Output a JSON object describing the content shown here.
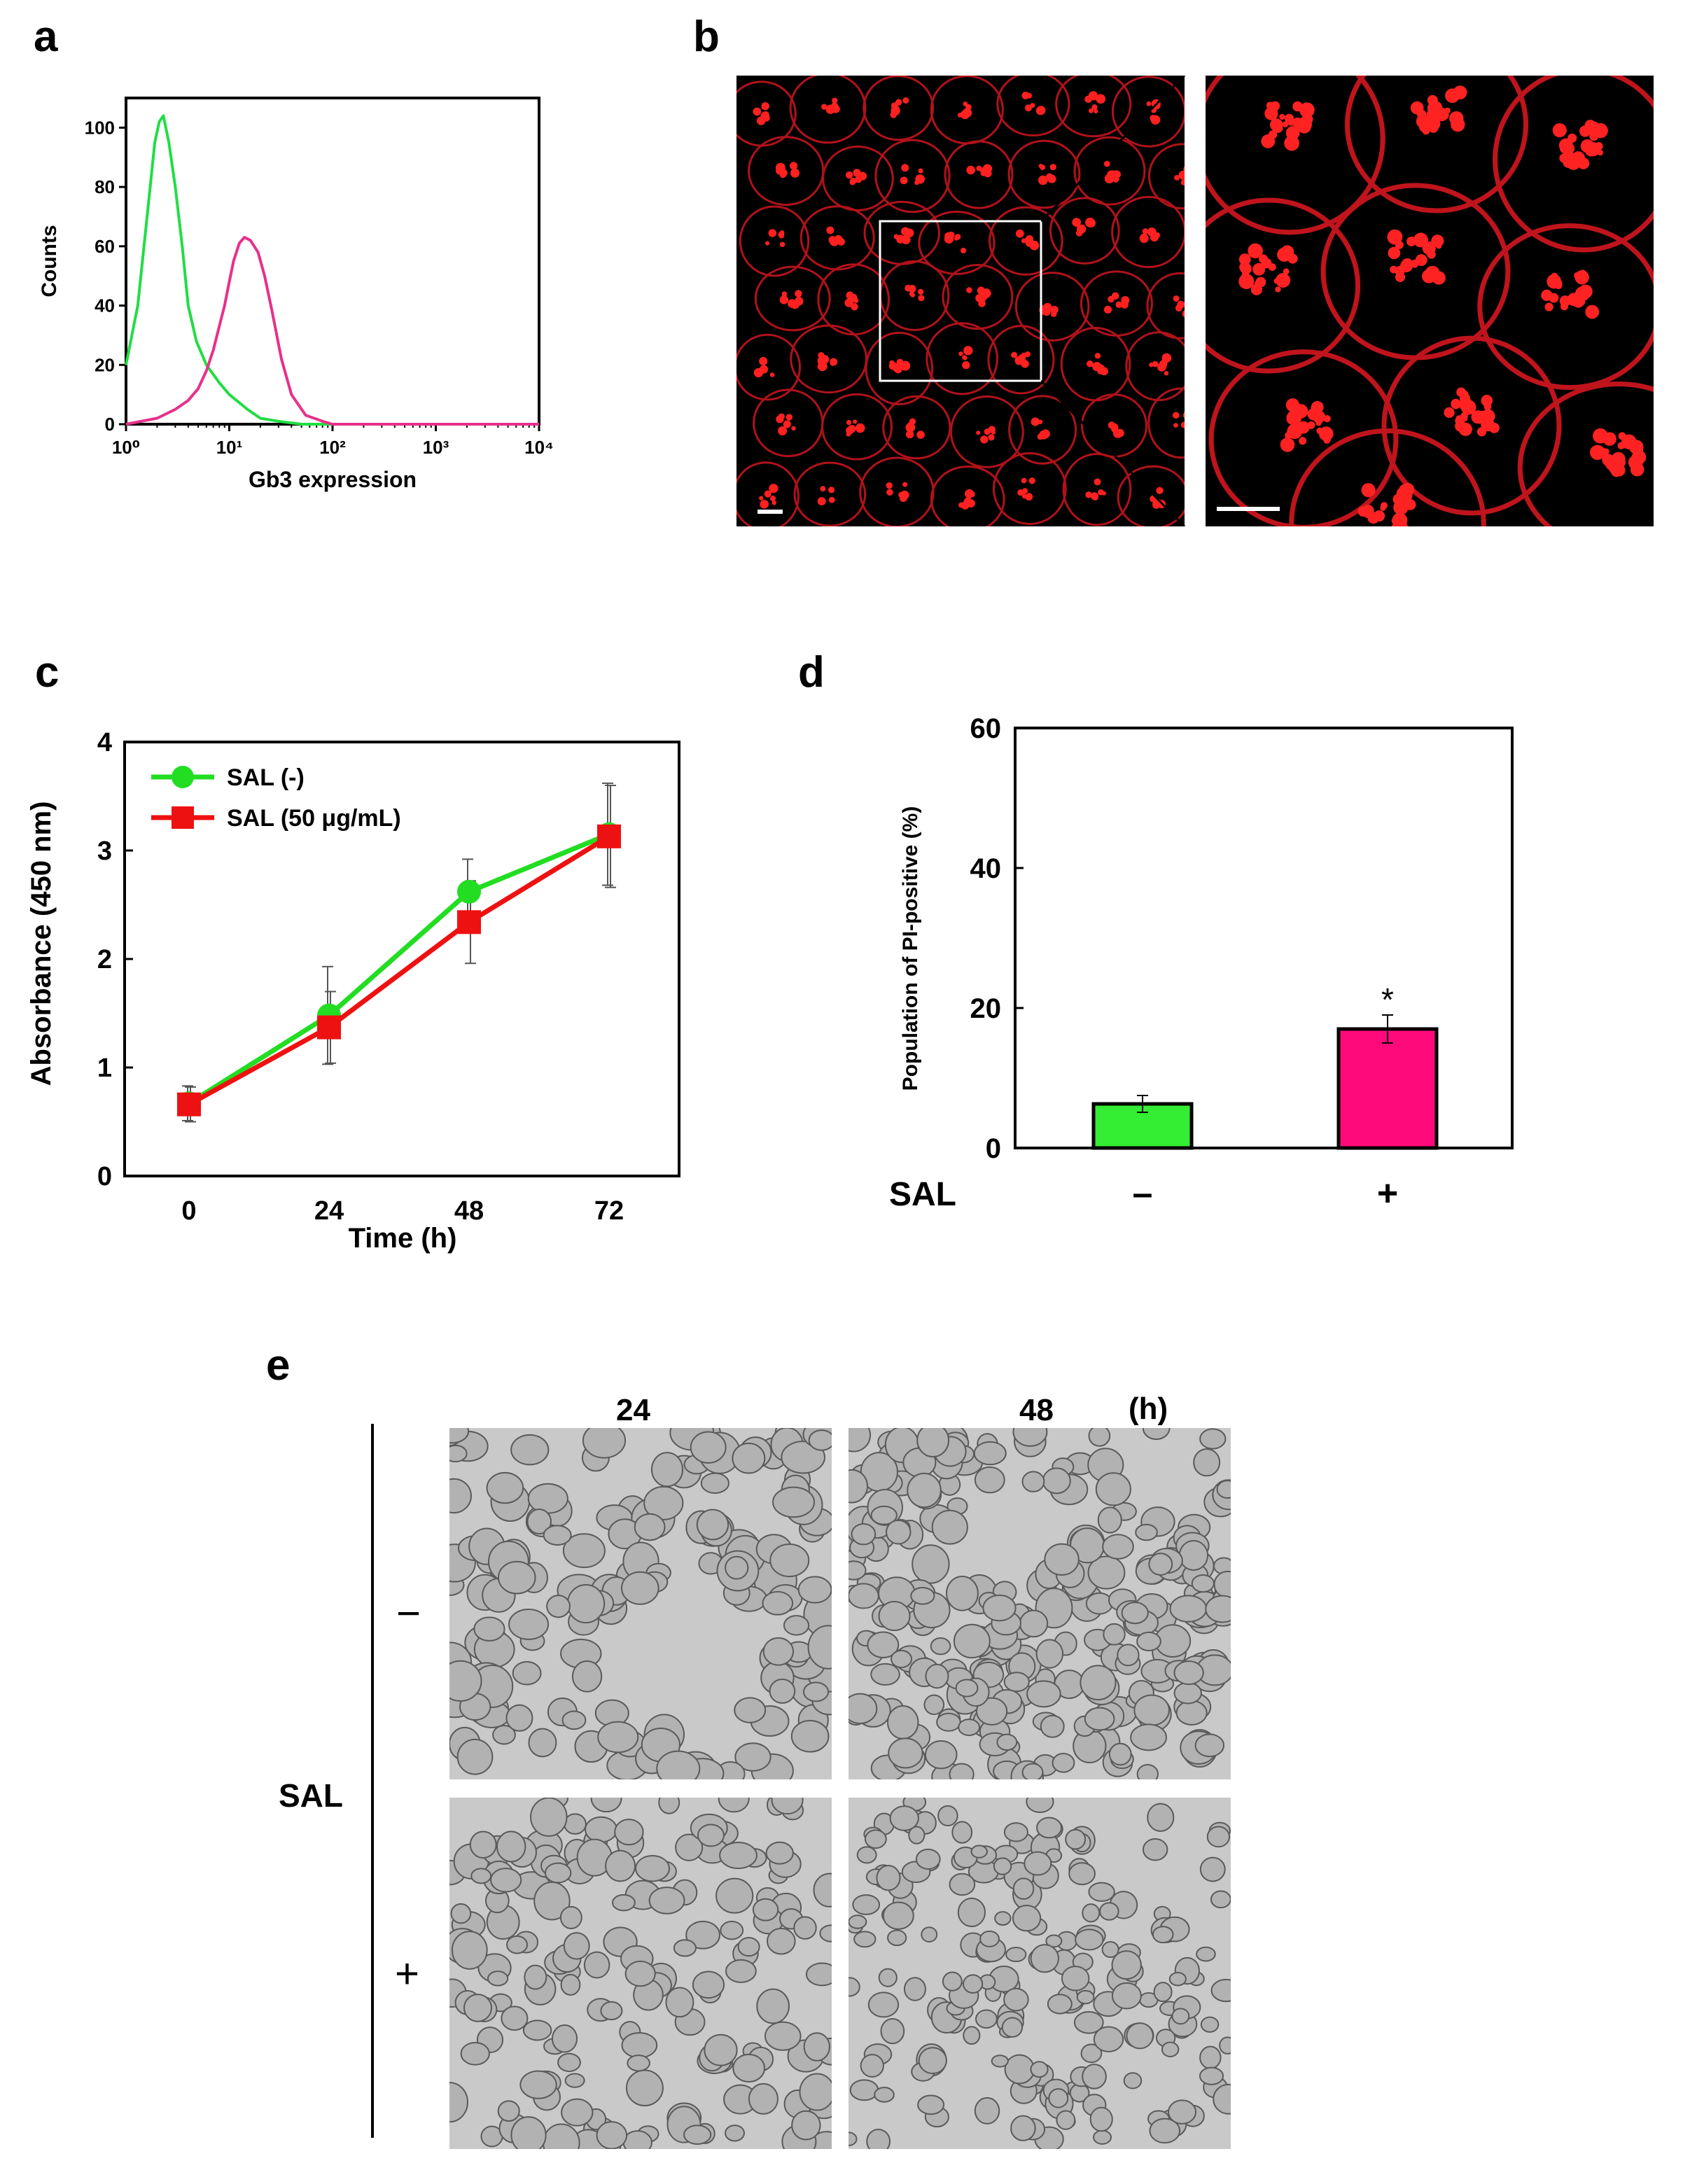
{
  "panels": {
    "a": "a",
    "b": "b",
    "c": "c",
    "d": "d",
    "e": "e"
  },
  "chart_data": [
    {
      "panel": "a",
      "type": "line",
      "xlabel": "Gb3 expression",
      "ylabel": "Counts",
      "xscale": "log",
      "xlim": [
        1,
        10000
      ],
      "ylim": [
        0,
        110
      ],
      "x_tick_labels": [
        "10⁰",
        "10¹",
        "10²",
        "10³",
        "10⁴"
      ],
      "y_ticks": [
        0,
        20,
        40,
        60,
        80,
        100
      ],
      "colors": [
        "#22dd44",
        "#e8308a"
      ],
      "series": [
        {
          "x": [
            1.0,
            1.3,
            1.6,
            1.9,
            2.1,
            2.3,
            2.6,
            3.0,
            3.5,
            4.0,
            4.8,
            6.0,
            8.0,
            10.0,
            15.0,
            20.0,
            30.0,
            50.0,
            100.0,
            1000.0,
            10000.0
          ],
          "values": [
            20,
            40,
            70,
            95,
            102,
            104,
            95,
            80,
            60,
            40,
            28,
            20,
            14,
            10,
            5,
            2,
            1,
            0,
            0,
            0,
            0
          ]
        },
        {
          "x": [
            1.0,
            2.0,
            3.0,
            4.0,
            5.0,
            6.0,
            7.0,
            8.0,
            9.0,
            10.0,
            11.0,
            12.5,
            14.0,
            16.0,
            19.0,
            22.0,
            26.0,
            32.0,
            40.0,
            55.0,
            80.0,
            100.0,
            1000.0,
            10000.0
          ],
          "values": [
            0,
            2,
            5,
            8,
            12,
            18,
            25,
            33,
            40,
            48,
            55,
            61,
            63,
            62,
            58,
            50,
            38,
            22,
            10,
            3,
            1,
            0,
            0,
            0
          ]
        }
      ]
    },
    {
      "panel": "c",
      "type": "line",
      "xlabel": "Time (h)",
      "ylabel": "Absorbance (450 nm)",
      "categories": [
        "0",
        "24",
        "48",
        "72"
      ],
      "ylim": [
        0,
        4
      ],
      "y_ticks": [
        0,
        1,
        2,
        3,
        4
      ],
      "legend": "top-left",
      "series": [
        {
          "name": "SAL (-)",
          "color": "#22dd22",
          "marker": "circle",
          "values": [
            0.67,
            1.48,
            2.62,
            3.15
          ],
          "err": [
            0.16,
            0.45,
            0.3,
            0.47
          ]
        },
        {
          "name": "SAL (50 μg/mL)",
          "color": "#ee1111",
          "marker": "square",
          "values": [
            0.66,
            1.37,
            2.34,
            3.13
          ],
          "err": [
            0.16,
            0.33,
            0.38,
            0.47
          ]
        }
      ]
    },
    {
      "panel": "d",
      "type": "bar",
      "ylabel": "Population of PI-positive (%)",
      "ylim": [
        0,
        60
      ],
      "y_ticks": [
        0,
        20,
        40,
        60
      ],
      "group_label": "SAL",
      "categories": [
        "–",
        "+"
      ],
      "values": [
        6.3,
        17.0
      ],
      "err": [
        1.2,
        2.0
      ],
      "colors": [
        "#33ee33",
        "#ff0a7a"
      ],
      "annotations": [
        "",
        "*"
      ]
    }
  ],
  "panel_e": {
    "col_labels": [
      "24",
      "48"
    ],
    "unit": "(h)",
    "row_group_label": "SAL",
    "row_labels": [
      "−",
      "+"
    ]
  }
}
